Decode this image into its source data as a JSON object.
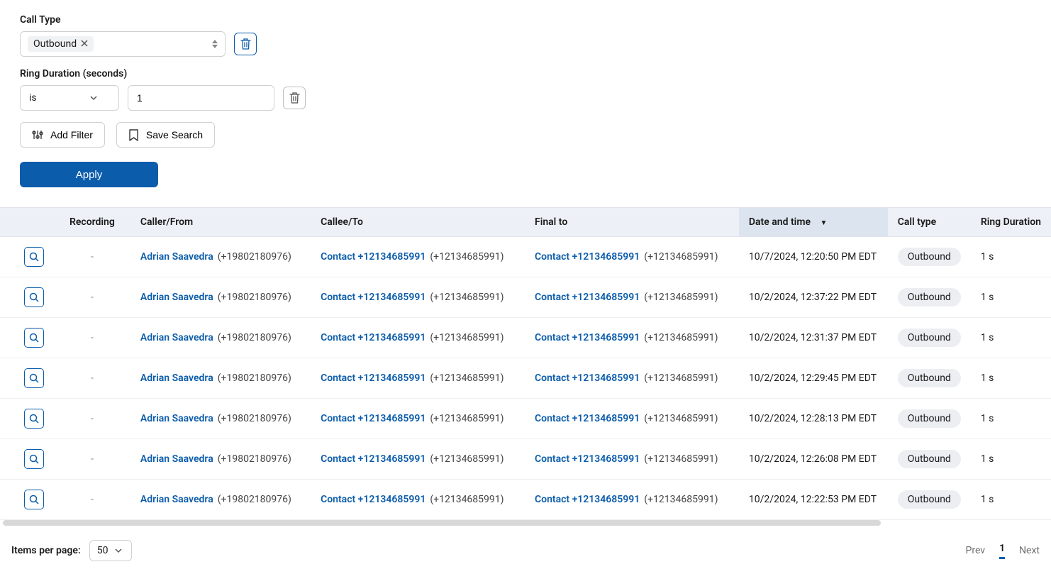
{
  "filters": {
    "call_type": {
      "label": "Call Type",
      "chip": "Outbound"
    },
    "ring_duration": {
      "label": "Ring Duration (seconds)",
      "operator": "is",
      "value": "1"
    }
  },
  "actions": {
    "add_filter": "Add Filter",
    "save_search": "Save Search",
    "apply": "Apply"
  },
  "table": {
    "columns": {
      "recording": "Recording",
      "caller_from": "Caller/From",
      "callee_to": "Callee/To",
      "final_to": "Final to",
      "date_time": "Date and time",
      "call_type": "Call type",
      "ring_duration": "Ring Duration"
    },
    "rows": [
      {
        "recording": "-",
        "caller_name": "Adrian Saavedra",
        "caller_phone": "(+19802180976)",
        "callee_name": "Contact +12134685991",
        "callee_phone": "(+12134685991)",
        "final_name": "Contact +12134685991",
        "final_phone": "(+12134685991)",
        "date": "10/7/2024, 12:20:50 PM EDT",
        "type": "Outbound",
        "ring": "1 s"
      },
      {
        "recording": "-",
        "caller_name": "Adrian Saavedra",
        "caller_phone": "(+19802180976)",
        "callee_name": "Contact +12134685991",
        "callee_phone": "(+12134685991)",
        "final_name": "Contact +12134685991",
        "final_phone": "(+12134685991)",
        "date": "10/2/2024, 12:37:22 PM EDT",
        "type": "Outbound",
        "ring": "1 s"
      },
      {
        "recording": "-",
        "caller_name": "Adrian Saavedra",
        "caller_phone": "(+19802180976)",
        "callee_name": "Contact +12134685991",
        "callee_phone": "(+12134685991)",
        "final_name": "Contact +12134685991",
        "final_phone": "(+12134685991)",
        "date": "10/2/2024, 12:31:37 PM EDT",
        "type": "Outbound",
        "ring": "1 s"
      },
      {
        "recording": "-",
        "caller_name": "Adrian Saavedra",
        "caller_phone": "(+19802180976)",
        "callee_name": "Contact +12134685991",
        "callee_phone": "(+12134685991)",
        "final_name": "Contact +12134685991",
        "final_phone": "(+12134685991)",
        "date": "10/2/2024, 12:29:45 PM EDT",
        "type": "Outbound",
        "ring": "1 s"
      },
      {
        "recording": "-",
        "caller_name": "Adrian Saavedra",
        "caller_phone": "(+19802180976)",
        "callee_name": "Contact +12134685991",
        "callee_phone": "(+12134685991)",
        "final_name": "Contact +12134685991",
        "final_phone": "(+12134685991)",
        "date": "10/2/2024, 12:28:13 PM EDT",
        "type": "Outbound",
        "ring": "1 s"
      },
      {
        "recording": "-",
        "caller_name": "Adrian Saavedra",
        "caller_phone": "(+19802180976)",
        "callee_name": "Contact +12134685991",
        "callee_phone": "(+12134685991)",
        "final_name": "Contact +12134685991",
        "final_phone": "(+12134685991)",
        "date": "10/2/2024, 12:26:08 PM EDT",
        "type": "Outbound",
        "ring": "1 s"
      },
      {
        "recording": "-",
        "caller_name": "Adrian Saavedra",
        "caller_phone": "(+19802180976)",
        "callee_name": "Contact +12134685991",
        "callee_phone": "(+12134685991)",
        "final_name": "Contact +12134685991",
        "final_phone": "(+12134685991)",
        "date": "10/2/2024, 12:22:53 PM EDT",
        "type": "Outbound",
        "ring": "1 s"
      }
    ]
  },
  "footer": {
    "items_per_page_label": "Items per page:",
    "page_size": "50",
    "prev": "Prev",
    "current": "1",
    "next": "Next"
  }
}
